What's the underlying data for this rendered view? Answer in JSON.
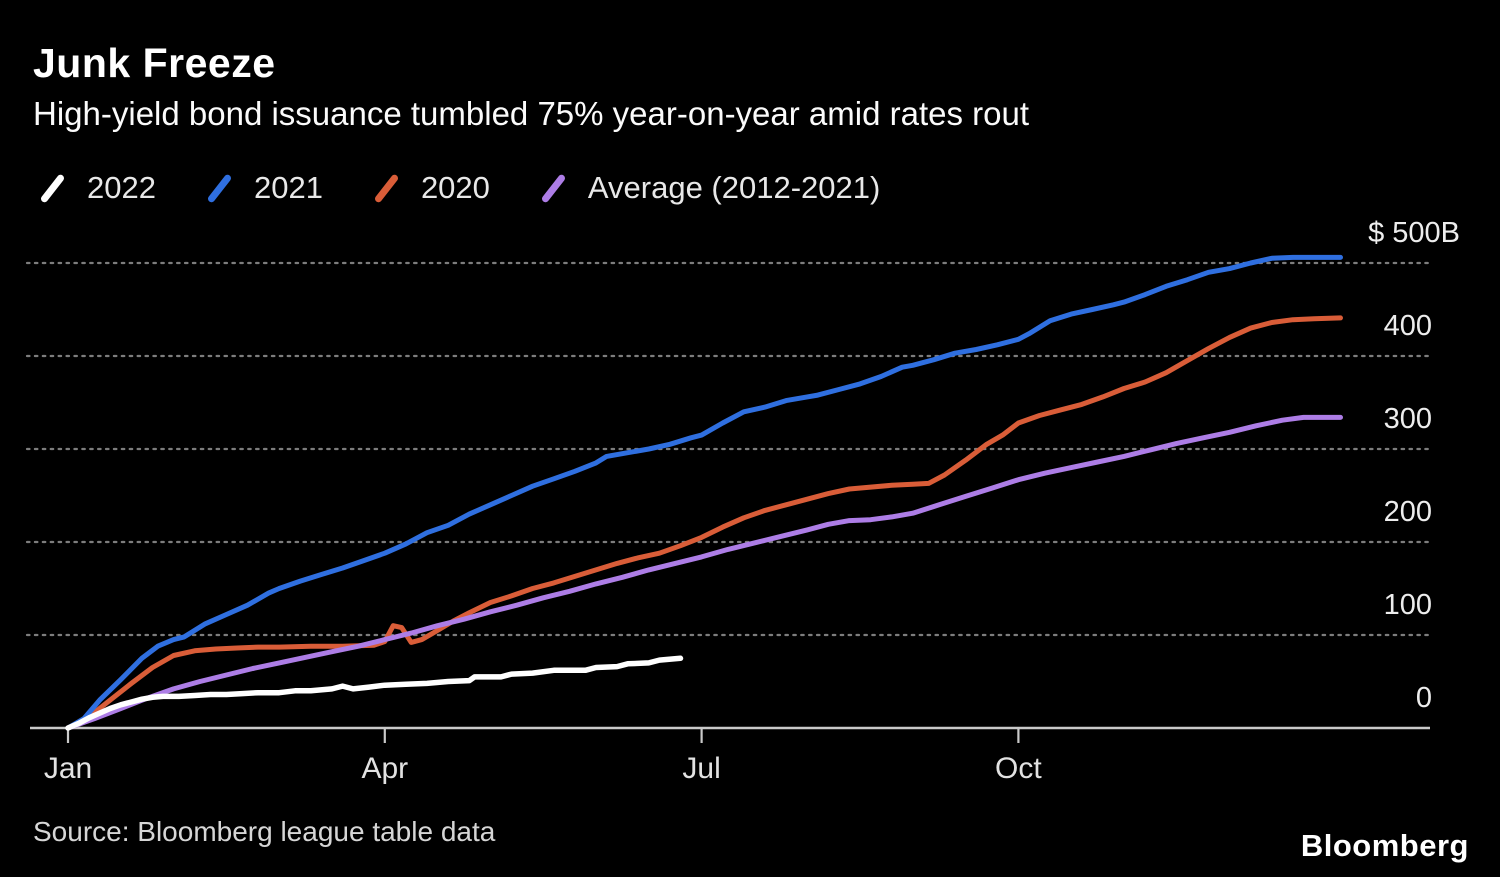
{
  "header": {
    "title": "Junk Freeze",
    "subtitle": "High-yield bond issuance tumbled 75% year-on-year amid rates rout"
  },
  "legend": {
    "items": [
      {
        "label": "2022",
        "color": "#ffffff"
      },
      {
        "label": "2021",
        "color": "#2f6fe0"
      },
      {
        "label": "2020",
        "color": "#d95d38"
      },
      {
        "label": "Average (2012-2021)",
        "color": "#ad7de6"
      }
    ]
  },
  "footer": {
    "source": "Source: Bloomberg league table data",
    "logo": "Bloomberg"
  },
  "colors": {
    "background": "#000000",
    "gridline": "#7d7d7d",
    "axis": "#c9c9c9",
    "line_2022": "#ffffff",
    "line_2021": "#2f6fe0",
    "line_2020": "#d95d38",
    "line_average": "#ad7de6"
  },
  "chart_data": {
    "type": "line",
    "title": "Junk Freeze",
    "subtitle": "High-yield bond issuance tumbled 75% year-on-year amid rates rout",
    "unit": "billions USD, cumulative year-to-date",
    "grid": "horizontal dotted",
    "legend_position": "top-left",
    "x_axis": {
      "tick_labels": [
        "Jan",
        "Apr",
        "Jul",
        "Oct"
      ],
      "tick_months": [
        0,
        3,
        6,
        9
      ],
      "range_months": [
        0,
        12.2
      ]
    },
    "y_axis": {
      "ticks": [
        0,
        100,
        200,
        300,
        400,
        500
      ],
      "tick_labels": [
        "0",
        "100",
        "200",
        "300",
        "400",
        "$ 500B"
      ],
      "range": [
        0,
        535
      ]
    },
    "series": [
      {
        "name": "2022",
        "color": "#ffffff",
        "width": 5.5,
        "points": [
          [
            0,
            0
          ],
          [
            0.1,
            5
          ],
          [
            0.2,
            11
          ],
          [
            0.3,
            16
          ],
          [
            0.4,
            21
          ],
          [
            0.5,
            25
          ],
          [
            0.6,
            28
          ],
          [
            0.7,
            31
          ],
          [
            0.8,
            33
          ],
          [
            0.9,
            34
          ],
          [
            1.05,
            34
          ],
          [
            1.2,
            35
          ],
          [
            1.35,
            36
          ],
          [
            1.5,
            36
          ],
          [
            1.65,
            37
          ],
          [
            1.8,
            38
          ],
          [
            2,
            38
          ],
          [
            2.15,
            40
          ],
          [
            2.3,
            40
          ],
          [
            2.5,
            42
          ],
          [
            2.6,
            45
          ],
          [
            2.7,
            42
          ],
          [
            2.85,
            44
          ],
          [
            3,
            46
          ],
          [
            3.2,
            47
          ],
          [
            3.4,
            48
          ],
          [
            3.6,
            50
          ],
          [
            3.8,
            51
          ],
          [
            3.85,
            55
          ],
          [
            4.1,
            55
          ],
          [
            4.2,
            58
          ],
          [
            4.4,
            59
          ],
          [
            4.6,
            62
          ],
          [
            4.9,
            62
          ],
          [
            5,
            65
          ],
          [
            5.2,
            66
          ],
          [
            5.3,
            69
          ],
          [
            5.5,
            70
          ],
          [
            5.6,
            73
          ],
          [
            5.8,
            75
          ]
        ]
      },
      {
        "name": "2021",
        "color": "#2f6fe0",
        "width": 5,
        "points": [
          [
            0,
            0
          ],
          [
            0.15,
            10
          ],
          [
            0.3,
            30
          ],
          [
            0.5,
            52
          ],
          [
            0.7,
            75
          ],
          [
            0.85,
            88
          ],
          [
            1,
            95
          ],
          [
            1.1,
            98
          ],
          [
            1.3,
            112
          ],
          [
            1.5,
            122
          ],
          [
            1.7,
            132
          ],
          [
            1.9,
            145
          ],
          [
            2,
            150
          ],
          [
            2.2,
            158
          ],
          [
            2.4,
            165
          ],
          [
            2.6,
            172
          ],
          [
            2.8,
            180
          ],
          [
            3,
            188
          ],
          [
            3.2,
            198
          ],
          [
            3.4,
            210
          ],
          [
            3.6,
            218
          ],
          [
            3.8,
            230
          ],
          [
            4,
            240
          ],
          [
            4.2,
            250
          ],
          [
            4.4,
            260
          ],
          [
            4.6,
            268
          ],
          [
            4.8,
            276
          ],
          [
            5,
            285
          ],
          [
            5.1,
            292
          ],
          [
            5.3,
            296
          ],
          [
            5.5,
            300
          ],
          [
            5.7,
            305
          ],
          [
            5.9,
            312
          ],
          [
            6,
            315
          ],
          [
            6.2,
            328
          ],
          [
            6.4,
            340
          ],
          [
            6.6,
            345
          ],
          [
            6.8,
            352
          ],
          [
            7,
            356
          ],
          [
            7.1,
            358
          ],
          [
            7.3,
            364
          ],
          [
            7.5,
            370
          ],
          [
            7.7,
            378
          ],
          [
            7.9,
            388
          ],
          [
            8,
            390
          ],
          [
            8.2,
            396
          ],
          [
            8.4,
            403
          ],
          [
            8.6,
            407
          ],
          [
            8.8,
            412
          ],
          [
            9,
            418
          ],
          [
            9.1,
            424
          ],
          [
            9.3,
            438
          ],
          [
            9.5,
            445
          ],
          [
            9.7,
            450
          ],
          [
            9.9,
            455
          ],
          [
            10,
            458
          ],
          [
            10.2,
            466
          ],
          [
            10.4,
            475
          ],
          [
            10.6,
            482
          ],
          [
            10.8,
            490
          ],
          [
            11,
            494
          ],
          [
            11.2,
            500
          ],
          [
            11.4,
            505
          ],
          [
            11.6,
            506
          ],
          [
            12.05,
            506
          ]
        ]
      },
      {
        "name": "2020",
        "color": "#d95d38",
        "width": 5,
        "points": [
          [
            0,
            0
          ],
          [
            0.2,
            12
          ],
          [
            0.4,
            30
          ],
          [
            0.6,
            48
          ],
          [
            0.8,
            65
          ],
          [
            1,
            78
          ],
          [
            1.2,
            83
          ],
          [
            1.4,
            85
          ],
          [
            1.6,
            86
          ],
          [
            1.8,
            87
          ],
          [
            2,
            87
          ],
          [
            2.3,
            88
          ],
          [
            2.6,
            88
          ],
          [
            2.9,
            89
          ],
          [
            3,
            93
          ],
          [
            3.08,
            110
          ],
          [
            3.16,
            108
          ],
          [
            3.25,
            92
          ],
          [
            3.35,
            95
          ],
          [
            3.5,
            105
          ],
          [
            3.65,
            115
          ],
          [
            3.8,
            124
          ],
          [
            4,
            135
          ],
          [
            4.2,
            142
          ],
          [
            4.4,
            150
          ],
          [
            4.6,
            156
          ],
          [
            4.8,
            163
          ],
          [
            5,
            170
          ],
          [
            5.2,
            177
          ],
          [
            5.4,
            183
          ],
          [
            5.6,
            188
          ],
          [
            5.8,
            196
          ],
          [
            6,
            205
          ],
          [
            6.2,
            216
          ],
          [
            6.4,
            226
          ],
          [
            6.6,
            234
          ],
          [
            6.8,
            240
          ],
          [
            7,
            246
          ],
          [
            7.2,
            252
          ],
          [
            7.4,
            257
          ],
          [
            7.6,
            259
          ],
          [
            7.8,
            261
          ],
          [
            8,
            262
          ],
          [
            8.15,
            263
          ],
          [
            8.3,
            272
          ],
          [
            8.5,
            288
          ],
          [
            8.7,
            305
          ],
          [
            8.85,
            315
          ],
          [
            9,
            328
          ],
          [
            9.2,
            336
          ],
          [
            9.4,
            342
          ],
          [
            9.6,
            348
          ],
          [
            9.8,
            356
          ],
          [
            10,
            365
          ],
          [
            10.2,
            372
          ],
          [
            10.4,
            382
          ],
          [
            10.6,
            395
          ],
          [
            10.8,
            408
          ],
          [
            11,
            420
          ],
          [
            11.2,
            430
          ],
          [
            11.4,
            436
          ],
          [
            11.6,
            439
          ],
          [
            11.8,
            440
          ],
          [
            12.05,
            441
          ]
        ]
      },
      {
        "name": "Average (2012-2021)",
        "color": "#ad7de6",
        "width": 5,
        "points": [
          [
            0,
            0
          ],
          [
            0.25,
            10
          ],
          [
            0.5,
            21
          ],
          [
            0.75,
            32
          ],
          [
            1,
            42
          ],
          [
            1.25,
            50
          ],
          [
            1.5,
            57
          ],
          [
            1.75,
            64
          ],
          [
            2,
            70
          ],
          [
            2.25,
            76
          ],
          [
            2.5,
            82
          ],
          [
            2.75,
            88
          ],
          [
            3,
            95
          ],
          [
            3.25,
            102
          ],
          [
            3.5,
            110
          ],
          [
            3.75,
            117
          ],
          [
            4,
            125
          ],
          [
            4.25,
            132
          ],
          [
            4.5,
            140
          ],
          [
            4.75,
            147
          ],
          [
            5,
            155
          ],
          [
            5.25,
            162
          ],
          [
            5.5,
            170
          ],
          [
            5.75,
            177
          ],
          [
            6,
            184
          ],
          [
            6.25,
            192
          ],
          [
            6.5,
            199
          ],
          [
            6.75,
            206
          ],
          [
            7,
            213
          ],
          [
            7.2,
            219
          ],
          [
            7.4,
            223
          ],
          [
            7.6,
            224
          ],
          [
            7.8,
            227
          ],
          [
            8,
            231
          ],
          [
            8.25,
            240
          ],
          [
            8.5,
            249
          ],
          [
            8.75,
            258
          ],
          [
            9,
            267
          ],
          [
            9.25,
            274
          ],
          [
            9.5,
            280
          ],
          [
            9.75,
            286
          ],
          [
            10,
            292
          ],
          [
            10.25,
            299
          ],
          [
            10.5,
            306
          ],
          [
            10.75,
            312
          ],
          [
            11,
            318
          ],
          [
            11.25,
            325
          ],
          [
            11.5,
            331
          ],
          [
            11.7,
            334
          ],
          [
            12.05,
            334
          ]
        ]
      }
    ]
  }
}
